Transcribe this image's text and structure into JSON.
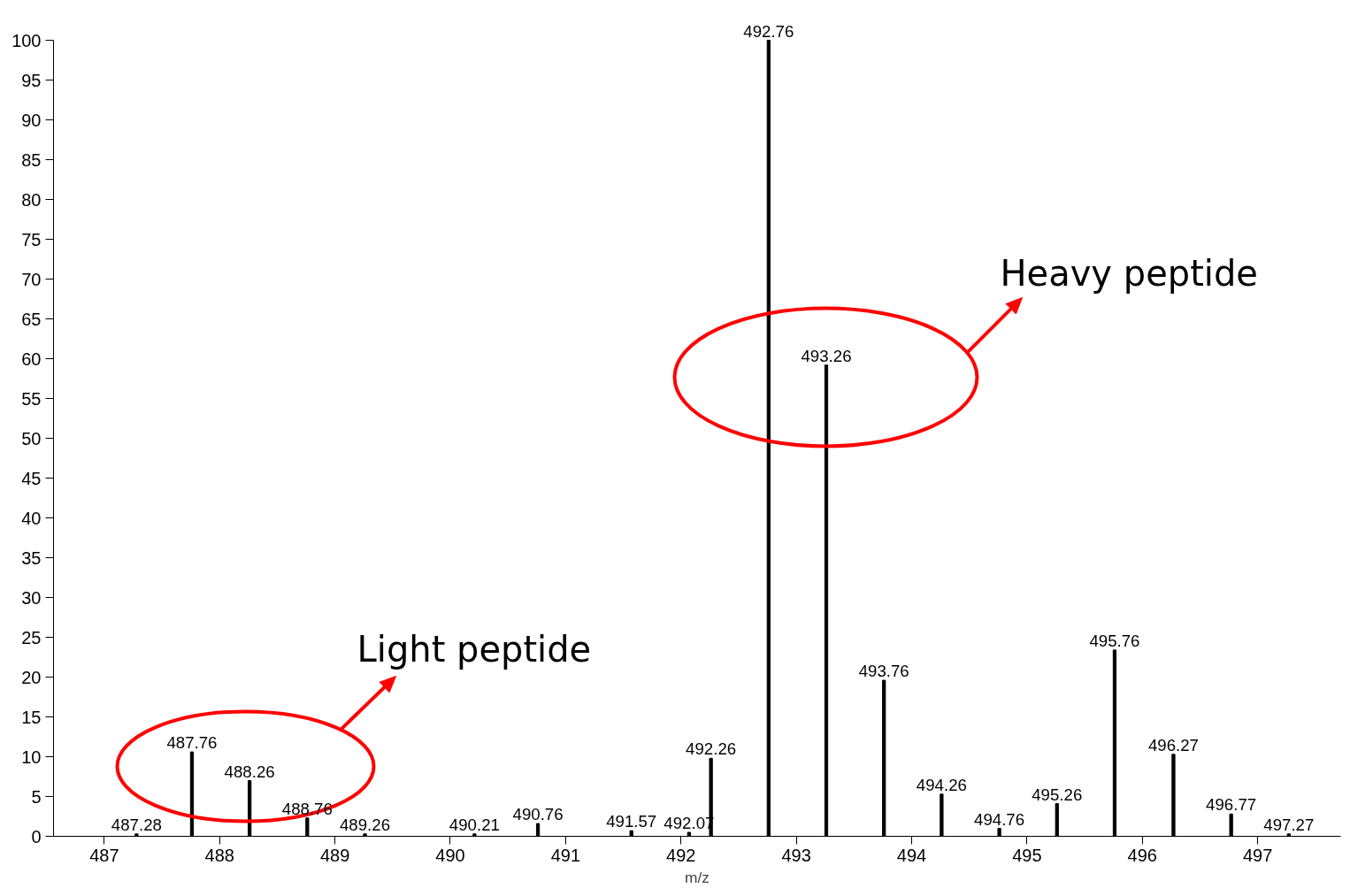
{
  "chart_data": {
    "type": "bar",
    "xlabel": "m/z",
    "x": [
      487.28,
      487.76,
      488.26,
      488.76,
      489.26,
      490.21,
      490.76,
      491.57,
      492.07,
      492.26,
      492.76,
      493.26,
      493.76,
      494.26,
      494.76,
      495.26,
      495.76,
      496.27,
      496.77,
      497.27
    ],
    "series": [
      {
        "color": "#000000",
        "values": [
          0.3,
          10.6,
          7.0,
          2.3,
          0.3,
          0.3,
          1.6,
          0.7,
          0.5,
          9.8,
          100,
          59.2,
          19.6,
          5.3,
          1.0,
          4.1,
          23.4,
          10.3,
          2.8,
          0.3
        ]
      }
    ],
    "xlim": [
      486.56,
      497.72
    ],
    "xticks": [
      487,
      488,
      489,
      490,
      491,
      492,
      493,
      494,
      495,
      496,
      497
    ],
    "ylim": [
      0,
      100
    ],
    "yticks": [
      0,
      5,
      10,
      15,
      20,
      25,
      30,
      35,
      40,
      45,
      50,
      55,
      60,
      65,
      70,
      75,
      80,
      85,
      90,
      95,
      100
    ],
    "grid": false,
    "annotations": [
      "Light peptide",
      "Heavy peptide",
      {
        "text": "487.28",
        "x": 487.28,
        "y": 0.3
      },
      {
        "text": "487.76",
        "x": 487.76,
        "y": 10.6
      },
      {
        "text": "488.26",
        "x": 488.26,
        "y": 7.0
      },
      {
        "text": "488.76",
        "x": 488.76,
        "y": 2.3
      },
      {
        "text": "489.26",
        "x": 489.26,
        "y": 0.3
      },
      {
        "text": "490.21",
        "x": 490.21,
        "y": 0.3
      },
      {
        "text": "490.76",
        "x": 490.76,
        "y": 1.6
      },
      {
        "text": "491.57",
        "x": 491.57,
        "y": 0.7
      },
      {
        "text": "492.07",
        "x": 492.07,
        "y": 0.5
      },
      {
        "text": "492.26",
        "x": 492.26,
        "y": 9.8
      },
      {
        "text": "492.76",
        "x": 492.76,
        "y": 100
      },
      {
        "text": "493.26",
        "x": 493.26,
        "y": 59.2
      },
      {
        "text": "493.76",
        "x": 493.76,
        "y": 19.6
      },
      {
        "text": "494.26",
        "x": 494.26,
        "y": 5.3
      },
      {
        "text": "494.76",
        "x": 494.76,
        "y": 1.0
      },
      {
        "text": "495.26",
        "x": 495.26,
        "y": 4.1
      },
      {
        "text": "495.76",
        "x": 495.76,
        "y": 23.4
      },
      {
        "text": "496.27",
        "x": 496.27,
        "y": 10.3
      },
      {
        "text": "496.77",
        "x": 496.77,
        "y": 2.8
      },
      {
        "text": "497.27",
        "x": 497.27,
        "y": 0.3
      }
    ]
  }
}
